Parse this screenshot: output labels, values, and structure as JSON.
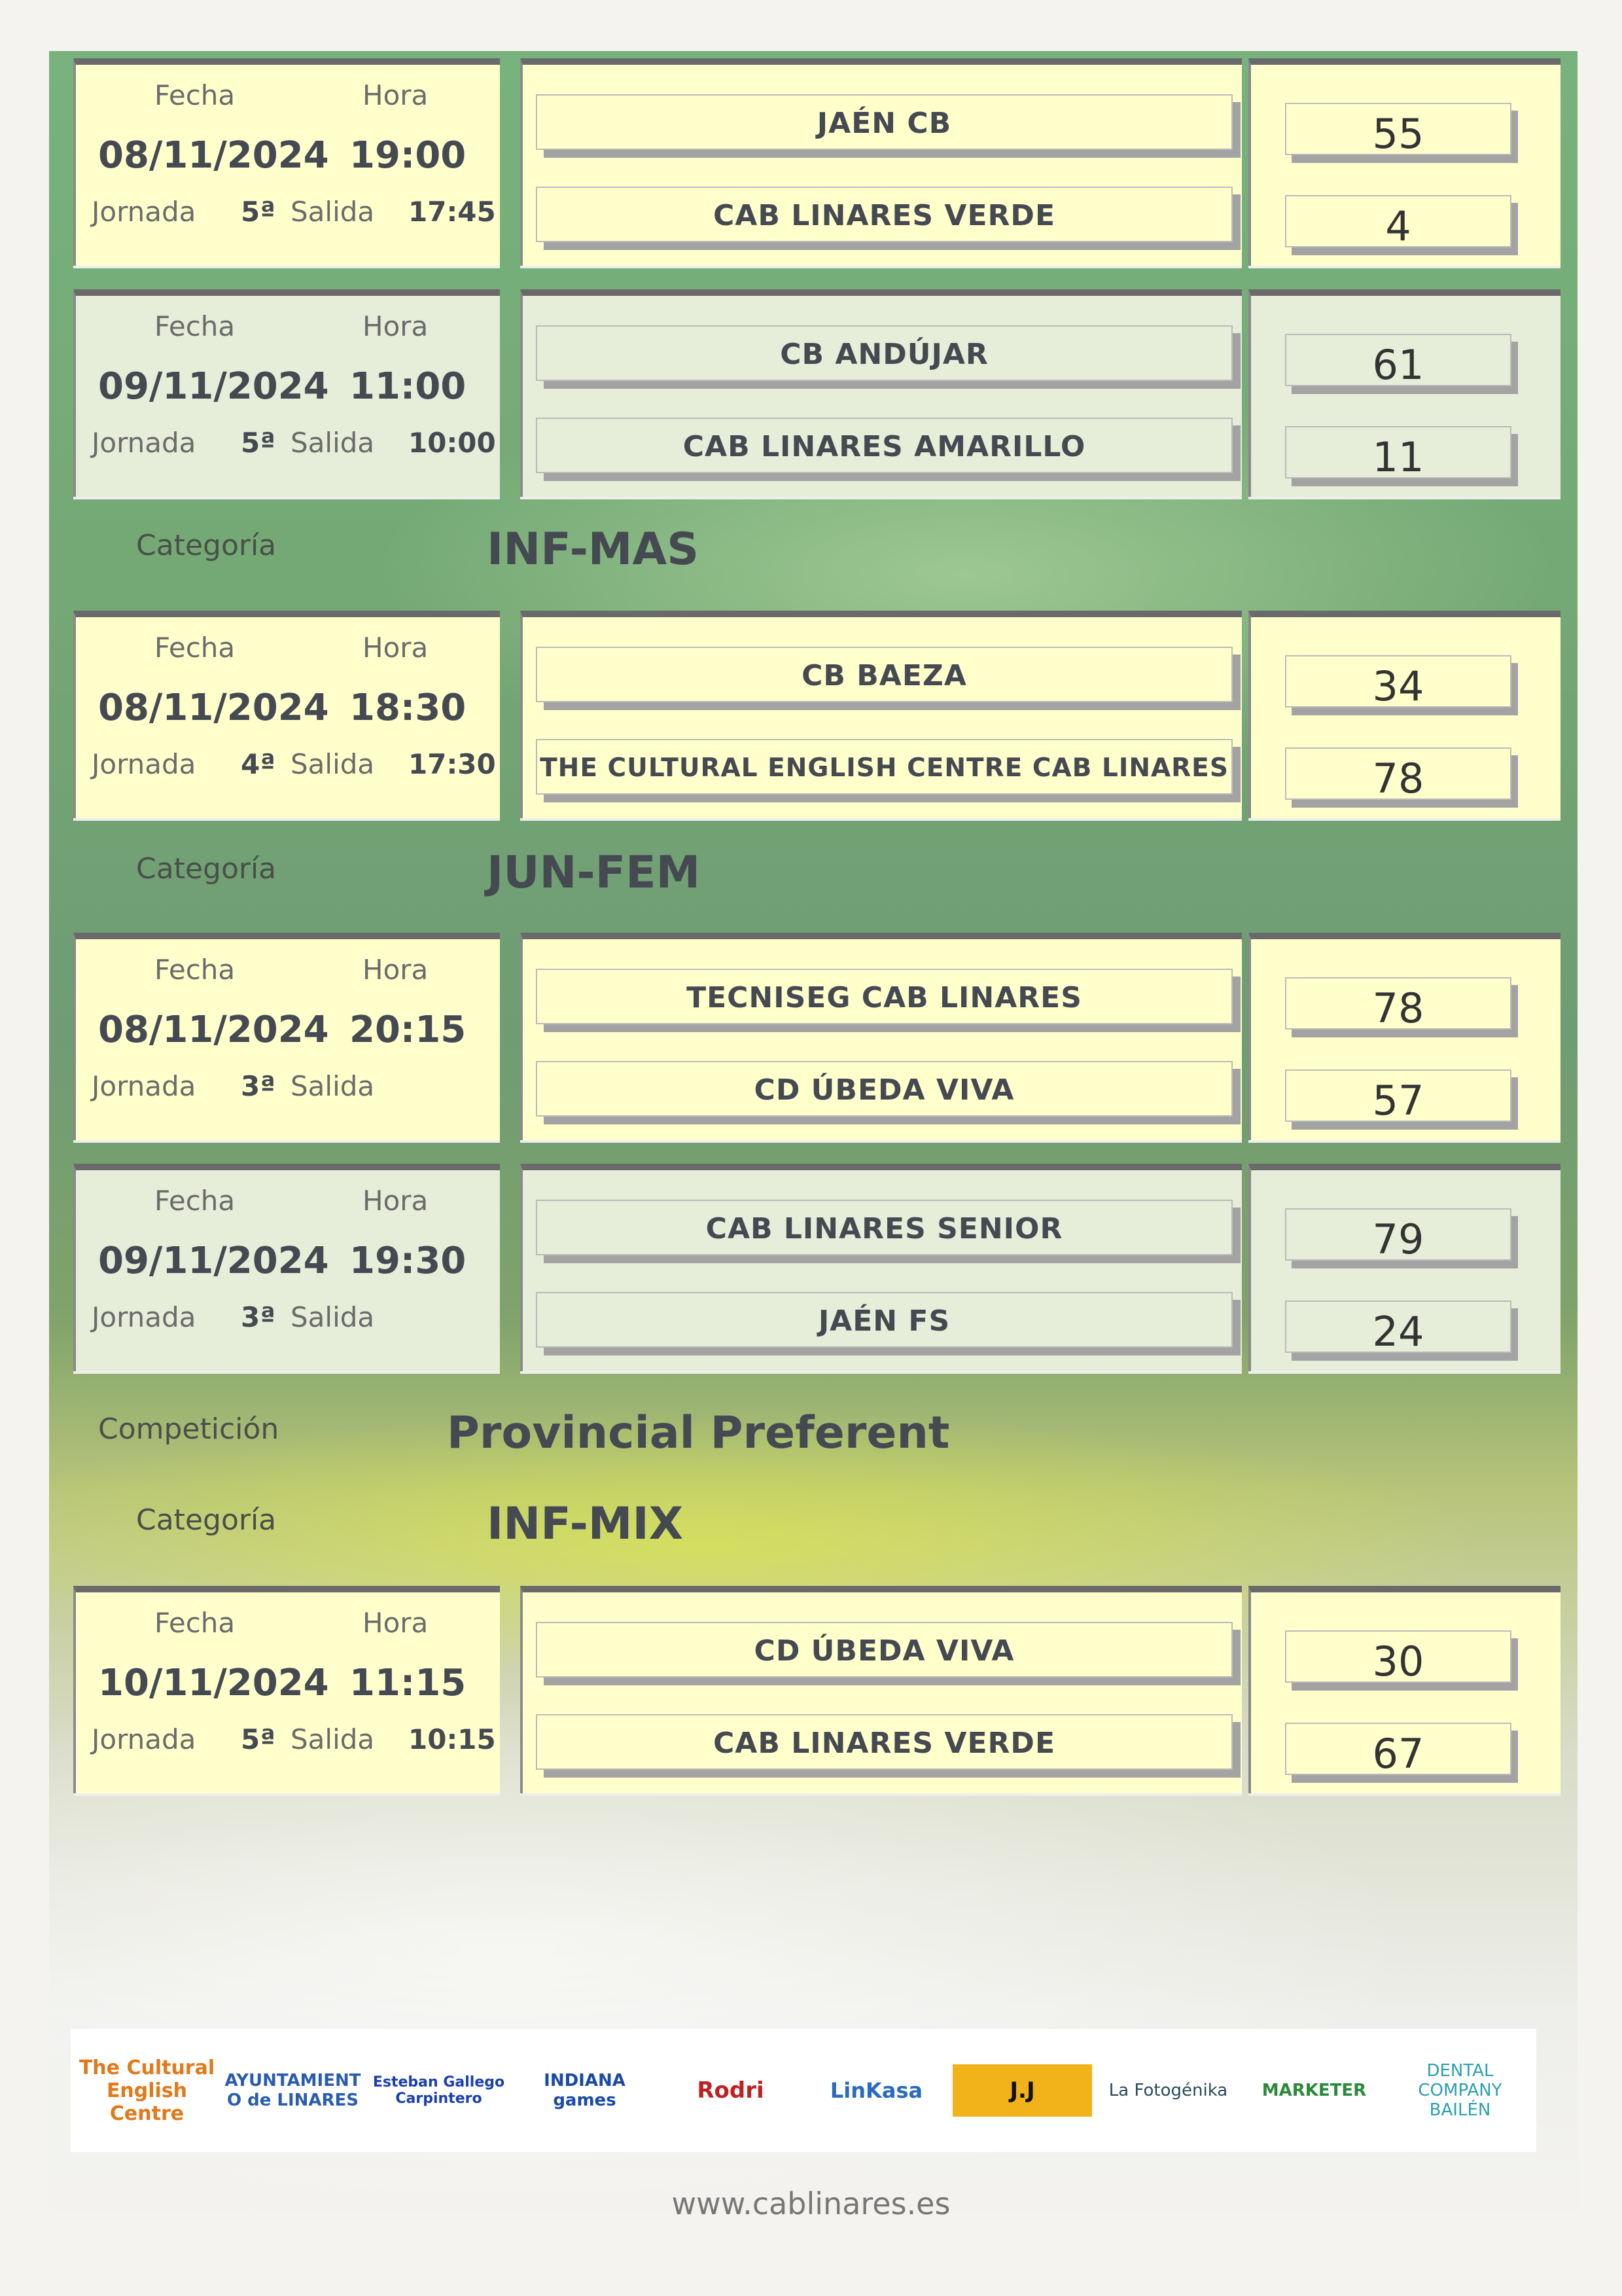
{
  "labels": {
    "fecha": "Fecha",
    "hora": "Hora",
    "jornada": "Jornada",
    "salida": "Salida",
    "categoria": "Categoría",
    "competicion": "Competición"
  },
  "colors": {
    "yellow_card": "#ffffcc",
    "green_card": "#e6edd8",
    "text": "#454a52"
  },
  "matches": [
    {
      "fecha": "08/11/2024",
      "hora": "19:00",
      "jornada": "5ª",
      "salida": "17:45",
      "home": "JAÉN CB",
      "away": "CAB LINARES VERDE",
      "home_score": "55",
      "away_score": "4",
      "style": "y"
    },
    {
      "fecha": "09/11/2024",
      "hora": "11:00",
      "jornada": "5ª",
      "salida": "10:00",
      "home": "CB ANDÚJAR",
      "away": "CAB LINARES AMARILLO",
      "home_score": "61",
      "away_score": "11",
      "style": "g"
    },
    {
      "fecha": "08/11/2024",
      "hora": "18:30",
      "jornada": "4ª",
      "salida": "17:30",
      "home": "CB BAEZA",
      "away": "THE CULTURAL ENGLISH CENTRE CAB LINARES",
      "home_score": "34",
      "away_score": "78",
      "style": "y"
    },
    {
      "fecha": "08/11/2024",
      "hora": "20:15",
      "jornada": "3ª",
      "salida": "",
      "home": "TECNISEG CAB LINARES",
      "away": "CD ÚBEDA VIVA",
      "home_score": "78",
      "away_score": "57",
      "style": "y"
    },
    {
      "fecha": "09/11/2024",
      "hora": "19:30",
      "jornada": "3ª",
      "salida": "",
      "home": "CAB LINARES SENIOR",
      "away": "JAÉN FS",
      "home_score": "79",
      "away_score": "24",
      "style": "g"
    },
    {
      "fecha": "10/11/2024",
      "hora": "11:15",
      "jornada": "5ª",
      "salida": "10:15",
      "home": "CD ÚBEDA VIVA",
      "away": "CAB LINARES VERDE",
      "home_score": "30",
      "away_score": "67",
      "style": "y"
    }
  ],
  "sections": {
    "cat_inf_mas": "INF-MAS",
    "cat_jun_fem": "JUN-FEM",
    "competition": "Provincial Preferent",
    "cat_inf_mix": "INF-MIX"
  },
  "sponsors": [
    "The Cultural English Centre",
    "AYUNTAMIENTO de LINARES",
    "Esteban Gallego Carpintero",
    "INDIANA games",
    "Rodri",
    "LinKasa",
    "J.J",
    "La Fotogénika",
    "MARKETER",
    "DENTAL COMPANY BAILÉN"
  ],
  "footer": {
    "url": "www.cablinares.es"
  }
}
